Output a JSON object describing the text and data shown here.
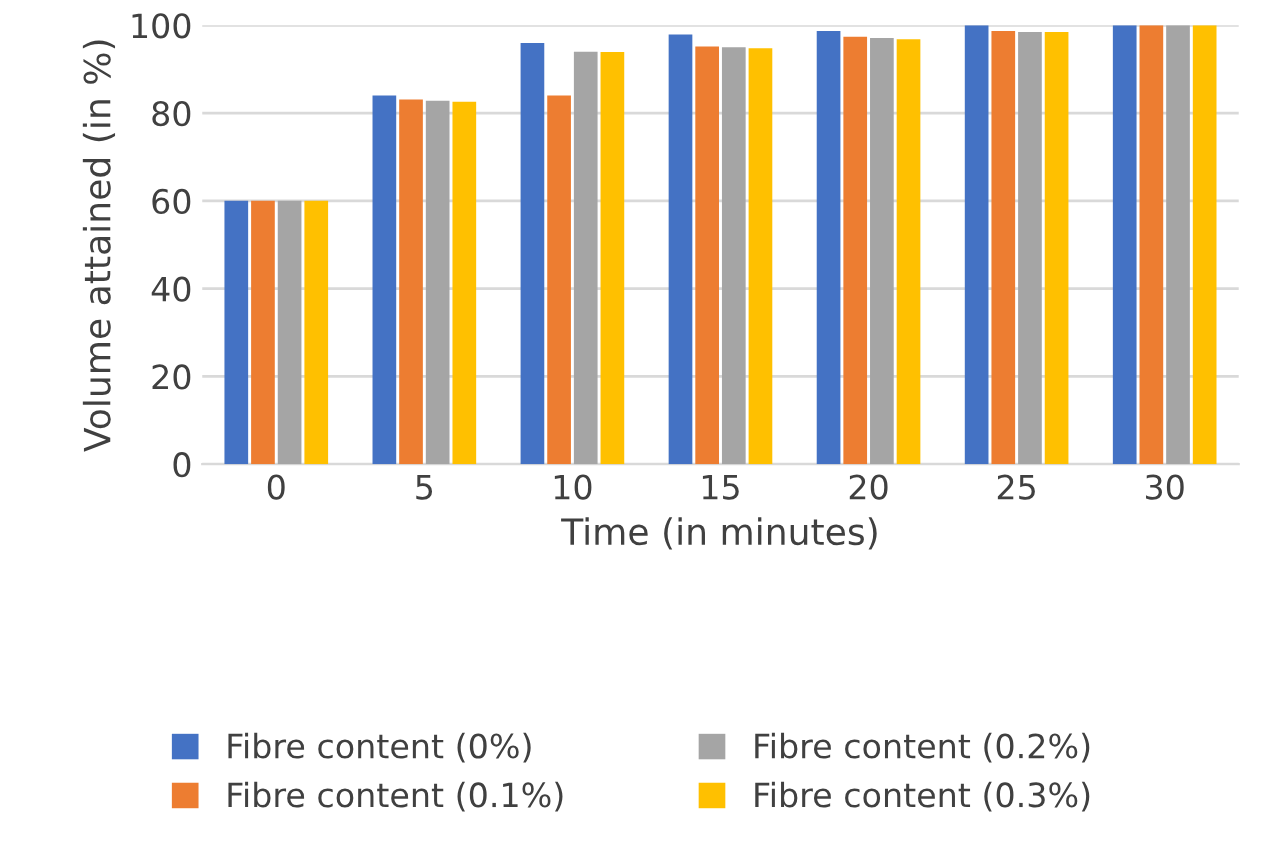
{
  "chart_data": {
    "type": "bar",
    "xlabel": "Time (in minutes)",
    "ylabel": "Volume attained (in %)",
    "categories": [
      "0",
      "5",
      "10",
      "15",
      "20",
      "25",
      "30"
    ],
    "series": [
      {
        "name": "Fibre content (0%)",
        "color": "#4472c4",
        "values": [
          60,
          84,
          96,
          97.9,
          98.7,
          100,
          100
        ]
      },
      {
        "name": "Fibre content (0.1%)",
        "color": "#ed7d31",
        "values": [
          60,
          83.1,
          84,
          95.2,
          97.4,
          98.7,
          100
        ]
      },
      {
        "name": "Fibre content (0.2%)",
        "color": "#a5a5a5",
        "values": [
          60,
          82.8,
          94,
          95,
          97.1,
          98.5,
          100
        ]
      },
      {
        "name": "Fibre content (0.3%)",
        "color": "#ffc000",
        "values": [
          60,
          82.6,
          93.9,
          94.8,
          96.8,
          98.5,
          100
        ]
      }
    ],
    "ylim": [
      0,
      100
    ],
    "yticks": [
      0,
      20,
      40,
      60,
      80,
      100
    ],
    "grid": "y",
    "legend": "bottom"
  }
}
